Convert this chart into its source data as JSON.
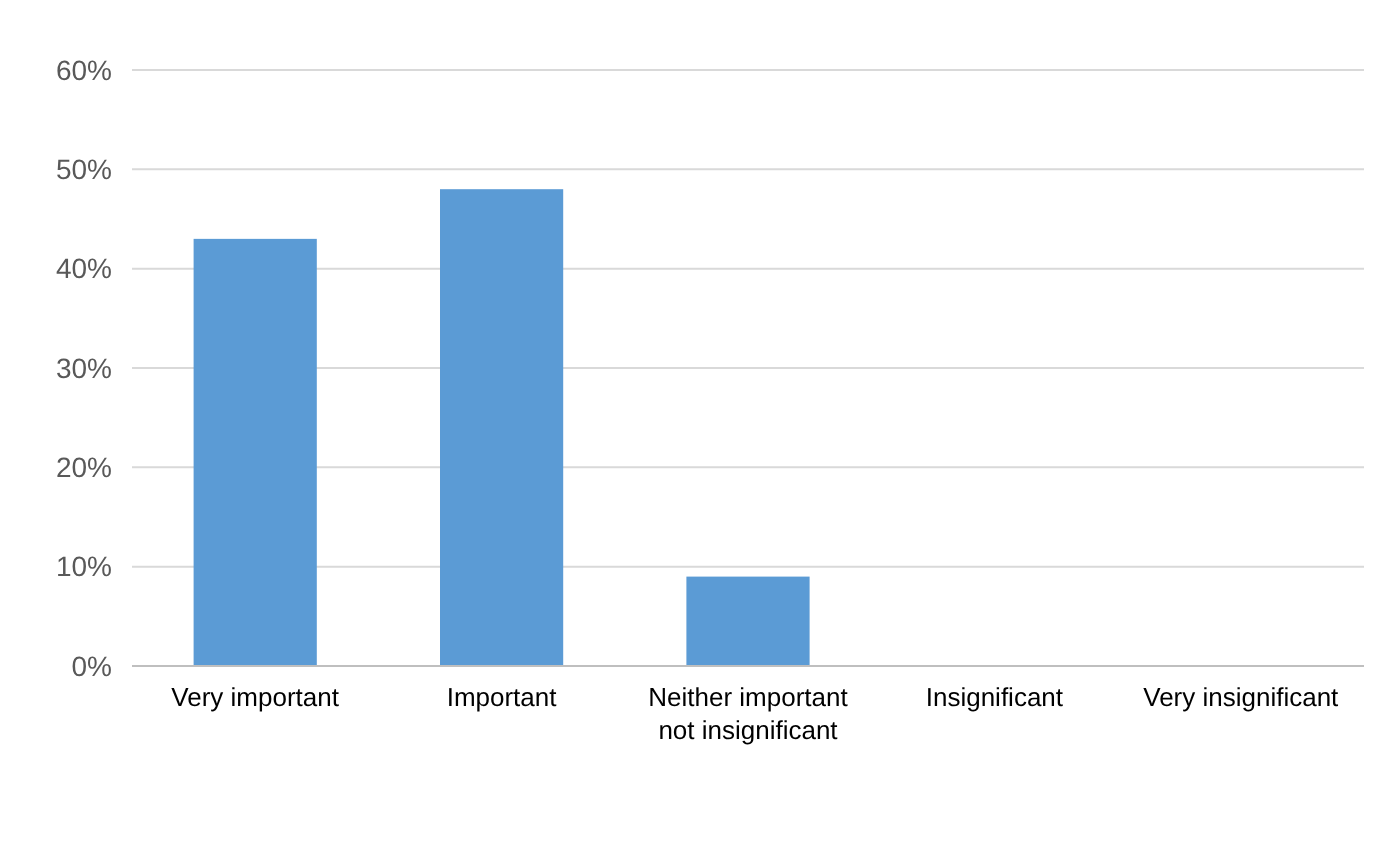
{
  "chart_data": {
    "type": "bar",
    "categories": [
      "Very important",
      "Important",
      "Neither important not insignificant",
      "Insignificant",
      "Very insignificant"
    ],
    "values": [
      43,
      48,
      9,
      0,
      0
    ],
    "color": "#5b9bd5",
    "ylim": [
      0,
      60
    ],
    "yticks": [
      {
        "value": 0,
        "label": "0%"
      },
      {
        "value": 10,
        "label": "10%"
      },
      {
        "value": 20,
        "label": "20%"
      },
      {
        "value": 30,
        "label": "30%"
      },
      {
        "value": 40,
        "label": "40%"
      },
      {
        "value": 50,
        "label": "50%"
      },
      {
        "value": 60,
        "label": "60%"
      }
    ],
    "grid": "y"
  }
}
